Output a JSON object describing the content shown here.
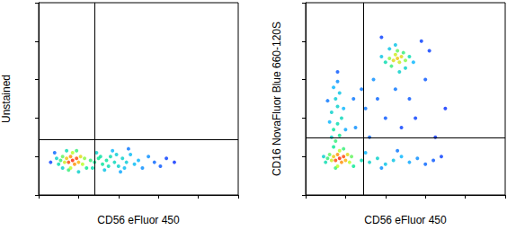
{
  "chart_data": [
    {
      "type": "scatter",
      "xlabel": "CD56 eFluor 450",
      "ylabel": "Unstained",
      "xlim": [
        0,
        100
      ],
      "ylim": [
        0,
        100
      ],
      "xticks": [
        0,
        20,
        40,
        60,
        80,
        100
      ],
      "yticks": [
        0,
        20,
        40,
        60,
        80,
        100
      ],
      "tick_labels": false,
      "gates": {
        "x": 28,
        "y": 29
      },
      "density_range": [
        0,
        1
      ],
      "x": [
        17,
        15,
        19,
        16,
        18,
        14,
        20,
        13,
        21,
        17,
        16,
        12,
        22,
        11,
        19,
        15,
        23,
        10,
        14,
        24,
        9,
        20,
        12,
        26,
        28,
        30,
        32,
        34,
        36,
        38,
        40,
        42,
        44,
        46,
        48,
        50,
        52,
        55,
        58,
        61,
        64,
        68,
        29,
        33,
        37,
        41,
        45,
        35,
        31,
        27,
        39,
        43,
        8,
        6
      ],
      "y": [
        18,
        17,
        19,
        20,
        16,
        19,
        17,
        17,
        20,
        22,
        14,
        20,
        16,
        18,
        23,
        13,
        19,
        16,
        23,
        14,
        19,
        12,
        14,
        18,
        17,
        19,
        16,
        18,
        20,
        17,
        15,
        19,
        17,
        21,
        16,
        18,
        14,
        20,
        17,
        15,
        19,
        17,
        22,
        13,
        23,
        12,
        24,
        15,
        20,
        14,
        21,
        14,
        22,
        17
      ],
      "density": [
        1,
        0.95,
        0.95,
        0.85,
        0.85,
        0.75,
        0.8,
        0.65,
        0.7,
        0.6,
        0.6,
        0.5,
        0.6,
        0.45,
        0.45,
        0.45,
        0.55,
        0.35,
        0.35,
        0.4,
        0.3,
        0.3,
        0.3,
        0.45,
        0.4,
        0.4,
        0.38,
        0.38,
        0.35,
        0.33,
        0.3,
        0.3,
        0.28,
        0.22,
        0.22,
        0.2,
        0.15,
        0.15,
        0.1,
        0.08,
        0.05,
        0.03,
        0.3,
        0.25,
        0.2,
        0.18,
        0.12,
        0.35,
        0.37,
        0.35,
        0.28,
        0.22,
        0.1,
        0.05
      ]
    },
    {
      "type": "scatter",
      "xlabel": "CD56 eFluor 450",
      "ylabel": "CD16 NovaFluor Blue 660-120S",
      "xlim": [
        0,
        100
      ],
      "ylim": [
        0,
        100
      ],
      "xticks": [
        0,
        20,
        40,
        60,
        80,
        100
      ],
      "yticks": [
        0,
        20,
        40,
        60,
        80,
        100
      ],
      "tick_labels": false,
      "gates": {
        "x": 29,
        "y": 30
      },
      "density_range": [
        0,
        1
      ],
      "x": [
        17,
        15,
        19,
        16,
        18,
        14,
        20,
        13,
        21,
        17,
        16,
        12,
        22,
        11,
        19,
        15,
        23,
        10,
        14,
        24,
        9,
        15,
        17,
        14,
        16,
        18,
        13,
        16,
        15,
        17,
        14,
        16,
        12,
        19,
        20,
        11,
        16,
        13,
        46,
        44,
        48,
        45,
        47,
        42,
        50,
        46,
        43,
        49,
        40,
        52,
        45,
        47,
        38,
        54,
        42,
        50,
        25,
        30,
        28,
        34,
        36,
        40,
        45,
        52,
        55,
        60,
        62,
        58,
        32,
        24,
        38,
        65,
        70,
        48,
        28,
        32,
        36,
        40,
        44,
        48,
        52,
        56,
        60,
        64,
        68,
        30,
        38,
        46
      ],
      "y": [
        19,
        18,
        20,
        21,
        17,
        20,
        18,
        18,
        21,
        23,
        15,
        21,
        17,
        19,
        24,
        14,
        20,
        17,
        25,
        15,
        20,
        28,
        31,
        34,
        37,
        40,
        43,
        46,
        50,
        53,
        56,
        59,
        38,
        45,
        34,
        49,
        64,
        30,
        71,
        70,
        72,
        73,
        69,
        71,
        70,
        75,
        67,
        74,
        69,
        72,
        78,
        64,
        72,
        69,
        76,
        66,
        35,
        45,
        55,
        60,
        50,
        40,
        55,
        50,
        40,
        60,
        75,
        80,
        30,
        50,
        82,
        30,
        45,
        35,
        18,
        17,
        19,
        16,
        18,
        20,
        17,
        19,
        16,
        18,
        20,
        22,
        14,
        23
      ],
      "density": [
        1,
        0.95,
        0.95,
        0.85,
        0.85,
        0.75,
        0.8,
        0.65,
        0.7,
        0.6,
        0.6,
        0.5,
        0.6,
        0.45,
        0.45,
        0.45,
        0.5,
        0.35,
        0.4,
        0.4,
        0.3,
        0.45,
        0.4,
        0.38,
        0.35,
        0.33,
        0.3,
        0.3,
        0.28,
        0.25,
        0.2,
        0.15,
        0.2,
        0.2,
        0.18,
        0.12,
        0.08,
        0.3,
        0.75,
        0.7,
        0.7,
        0.65,
        0.65,
        0.55,
        0.55,
        0.5,
        0.45,
        0.45,
        0.35,
        0.35,
        0.25,
        0.3,
        0.25,
        0.2,
        0.25,
        0.3,
        0.15,
        0.12,
        0.12,
        0.15,
        0.1,
        0.08,
        0.12,
        0.08,
        0.05,
        0.08,
        0.05,
        0.05,
        0.1,
        0.12,
        0.05,
        0.03,
        0.03,
        0.05,
        0.35,
        0.3,
        0.3,
        0.25,
        0.25,
        0.2,
        0.18,
        0.15,
        0.1,
        0.08,
        0.05,
        0.2,
        0.15,
        0.12
      ]
    }
  ]
}
